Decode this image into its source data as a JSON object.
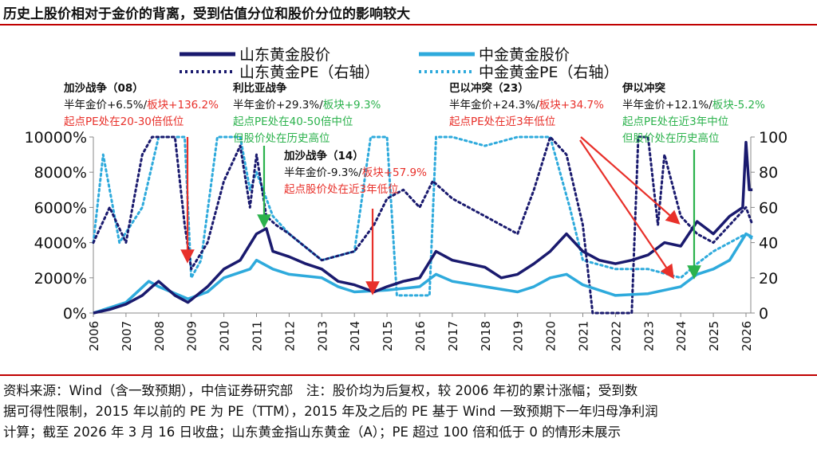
{
  "title": "历史上股价相对于金价的背离，受到估值分位和股价分位的影响较大",
  "chart_data": {
    "type": "line",
    "xlabel": "",
    "ylabel": "",
    "xlim": [
      2006,
      2026.3
    ],
    "ylim": [
      0,
      10000
    ],
    "y2lim": [
      0,
      100
    ],
    "x_ticks": [
      "2006",
      "2007",
      "2008",
      "2009",
      "2010",
      "2011",
      "2012",
      "2013",
      "2014",
      "2015",
      "2016",
      "2017",
      "2018",
      "2019",
      "2020",
      "2021",
      "2022",
      "2023",
      "2024",
      "2025",
      "2026"
    ],
    "y_ticks": [
      "0%",
      "2000%",
      "4000%",
      "6000%",
      "8000%",
      "10000%"
    ],
    "y2_ticks": [
      "0",
      "20",
      "40",
      "60",
      "80",
      "100"
    ],
    "legend_position": "top",
    "series": [
      {
        "name": "山东黄金股价",
        "axis": "left",
        "style": "solid",
        "color": "#1a1a6e",
        "x": [
          2006,
          2006.5,
          2007,
          2007.5,
          2007.8,
          2008,
          2008.5,
          2008.9,
          2009.5,
          2010,
          2010.5,
          2011,
          2011.3,
          2011.5,
          2012,
          2012.5,
          2013,
          2013.5,
          2014,
          2014.6,
          2015,
          2015.5,
          2016,
          2016.5,
          2017,
          2017.5,
          2018,
          2018.5,
          2019,
          2019.5,
          2020,
          2020.5,
          2021,
          2021.5,
          2022,
          2022.5,
          2023,
          2023.5,
          2024,
          2024.5,
          2025,
          2025.5,
          2025.9,
          2026,
          2026.1,
          2026.2
        ],
        "y": [
          0,
          200,
          500,
          1000,
          1500,
          1800,
          1000,
          600,
          1500,
          2500,
          3000,
          4500,
          4800,
          3500,
          3200,
          2800,
          2500,
          1800,
          1600,
          1200,
          1500,
          1800,
          2000,
          3500,
          3000,
          2800,
          2600,
          2000,
          2200,
          2800,
          3500,
          4500,
          3500,
          3000,
          2800,
          3000,
          3300,
          4000,
          3800,
          5200,
          4500,
          5500,
          6000,
          9700,
          7000,
          7000
        ]
      },
      {
        "name": "中金黄金股价",
        "axis": "left",
        "style": "solid",
        "color": "#2eaadc",
        "x": [
          2006,
          2007,
          2007.7,
          2008,
          2008.9,
          2009.5,
          2010,
          2010.8,
          2011,
          2011.5,
          2012,
          2013,
          2013.5,
          2014,
          2015,
          2016,
          2016.5,
          2017,
          2018,
          2019,
          2019.5,
          2020,
          2020.5,
          2021,
          2022,
          2023,
          2024,
          2024.5,
          2025,
          2025.5,
          2026,
          2026.2
        ],
        "y": [
          0,
          600,
          1800,
          1500,
          800,
          1200,
          2000,
          2500,
          3000,
          2500,
          2200,
          2000,
          1500,
          1200,
          1300,
          1500,
          2200,
          1800,
          1500,
          1200,
          1500,
          2000,
          2200,
          1600,
          1000,
          1100,
          1500,
          2200,
          2500,
          3000,
          4500,
          4300
        ]
      },
      {
        "name": "山东黄金PE（右轴）",
        "axis": "right",
        "style": "dotted",
        "color": "#1a1a6e",
        "x": [
          2006,
          2006.5,
          2007,
          2007.5,
          2007.8,
          2008.5,
          2008.8,
          2009,
          2009.5,
          2010,
          2010.5,
          2010.8,
          2011,
          2011.3,
          2011.6,
          2012,
          2013,
          2014,
          2014.6,
          2015,
          2015.5,
          2016,
          2016.4,
          2017,
          2018,
          2019,
          2019.5,
          2020,
          2020.5,
          2021,
          2021.3,
          2022,
          2022.5,
          2022.7,
          2023,
          2023.3,
          2023.5,
          2024,
          2024.5,
          2025,
          2026,
          2026.2
        ],
        "y": [
          40,
          60,
          40,
          90,
          100,
          100,
          50,
          25,
          40,
          75,
          95,
          60,
          90,
          55,
          50,
          45,
          30,
          35,
          50,
          65,
          70,
          60,
          75,
          65,
          55,
          45,
          70,
          100,
          90,
          50,
          0,
          0,
          0,
          100,
          100,
          50,
          90,
          55,
          45,
          40,
          60,
          50
        ]
      },
      {
        "name": "中金黄金PE（右轴）",
        "axis": "right",
        "style": "dotted",
        "color": "#2eaadc",
        "x": [
          2006,
          2006.3,
          2006.8,
          2007.5,
          2008,
          2008.8,
          2009,
          2009.3,
          2009.8,
          2010.5,
          2010.8,
          2011,
          2011.5,
          2012,
          2013,
          2014,
          2014.5,
          2015,
          2015.3,
          2016.3,
          2016.5,
          2017,
          2018,
          2019,
          2020,
          2020.6,
          2021,
          2022,
          2023,
          2024,
          2024.5,
          2025,
          2026,
          2026.2
        ],
        "y": [
          40,
          90,
          40,
          60,
          100,
          100,
          20,
          30,
          100,
          100,
          70,
          80,
          55,
          45,
          30,
          35,
          100,
          100,
          10,
          10,
          100,
          100,
          95,
          100,
          100,
          60,
          30,
          25,
          25,
          20,
          28,
          35,
          45,
          42
        ]
      }
    ],
    "annotations": [
      {
        "event": "加沙战争（08）",
        "line1": "半年金价+6.5%/",
        "line1b": "板块+136.2%",
        "line2": "起点PE处在20-30倍低位",
        "line3": "",
        "tone": "red"
      },
      {
        "event": "利比亚战争",
        "line1": "半年金价+29.3%/",
        "line1b": "板块+9.3%",
        "line2": "起点PE处在40-50倍中位",
        "line3": "但股价处在历史高位",
        "tone": "green"
      },
      {
        "event": "加沙战争（14）",
        "line1": "半年金价-9.3%/",
        "line1b": "板块+57.9%",
        "line2": "起点股价处在近3年低位",
        "line3": "",
        "tone": "red"
      },
      {
        "event": "巴以冲突（23）",
        "line1": "半年金价+24.3%/",
        "line1b": "板块+34.7%",
        "line2": "起点PE处在近3年低位",
        "line3": "",
        "tone": "red"
      },
      {
        "event": "伊以冲突",
        "line1": "半年金价+12.1%/",
        "line1b": "板块-5.2%",
        "line2": "起点PE处在近3年中位",
        "line3": "但股价处在历史高位",
        "tone": "green"
      }
    ],
    "colors": {
      "red": "#e8302a",
      "green": "#2bb24c",
      "navy": "#1a1a6e",
      "cyan": "#2eaadc"
    }
  },
  "footnote": [
    "资料来源：Wind（含一致预期），中信证券研究部　注：股价均为后复权，较 2006 年初的累计涨幅；受到数",
    "据可得性限制，2015 年以前的 PE 为 PE（TTM），2015 年及之后的 PE 基于 Wind 一致预期下一年归母净利润",
    "计算；截至 2026 年 3 月 16 日收盘；山东黄金指山东黄金（A）；PE 超过 100 倍和低于 0 的情形未展示"
  ]
}
